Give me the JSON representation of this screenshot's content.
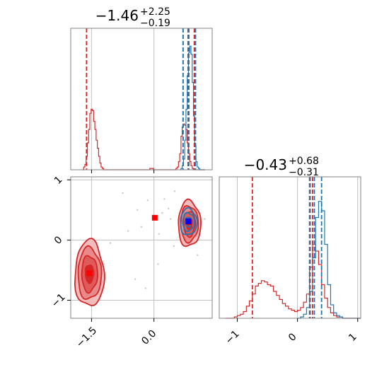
{
  "chart_data": [
    {
      "type": "histogram",
      "panel": "marginal-x",
      "title": {
        "value": "−1.46",
        "plus": "+2.25",
        "minus": "−0.19"
      },
      "xlim": [
        -2.0,
        1.4
      ],
      "series": [
        {
          "name": "",
          "color": "#d62728",
          "x": [
            -1.72,
            -1.69,
            -1.66,
            -1.63,
            -1.6,
            -1.57,
            -1.54,
            -1.51,
            -1.48,
            -1.45,
            -1.42,
            -1.39,
            -1.36,
            -1.33,
            -1.3,
            -1.27,
            -1.24,
            -1.21,
            -1.18,
            -1.15,
            -1.12,
            -1.09,
            -1.06,
            -1.03,
            -1.0,
            -0.97,
            -0.94,
            -0.91,
            -0.88,
            -0.85,
            -0.82,
            -0.79,
            -0.76,
            -0.73,
            -0.7,
            -0.67,
            -0.64,
            -0.61,
            -0.58,
            -0.55,
            -0.52,
            -0.49,
            -0.46,
            -0.43,
            -0.4,
            -0.37,
            -0.34,
            -0.31,
            -0.28,
            -0.25,
            -0.22,
            -0.19,
            -0.16,
            -0.13,
            -0.1,
            -0.07,
            -0.04,
            -0.01,
            0.02,
            0.05,
            0.08,
            0.11,
            0.14,
            0.17,
            0.2,
            0.23,
            0.26,
            0.29,
            0.32,
            0.35,
            0.38,
            0.41,
            0.44,
            0.47,
            0.5,
            0.53,
            0.56,
            0.59,
            0.62,
            0.65,
            0.68,
            0.71,
            0.74,
            0.77,
            0.8,
            0.83,
            0.86,
            0.89,
            0.92,
            0.95,
            0.98,
            1.01,
            1.04,
            1.07,
            1.1,
            1.13,
            1.16,
            1.19
          ],
          "y": [
            0,
            0.02,
            0.04,
            0.1,
            0.2,
            0.3,
            0.42,
            0.45,
            0.44,
            0.36,
            0.3,
            0.22,
            0.16,
            0.1,
            0.05,
            0.02,
            0.01,
            0,
            0,
            0,
            0,
            0,
            0,
            0,
            0,
            0,
            0,
            0,
            0,
            0,
            0,
            0,
            0,
            0,
            0,
            0,
            0,
            0,
            0,
            0,
            0,
            0,
            0,
            0,
            0,
            0,
            0,
            0,
            0,
            0,
            0,
            0,
            0,
            0,
            0.01,
            0.01,
            0.01,
            0,
            0,
            0,
            0,
            0,
            0,
            0,
            0,
            0,
            0,
            0,
            0,
            0,
            0,
            0,
            0,
            0,
            0,
            0.01,
            0.02,
            0.06,
            0.12,
            0.25,
            0.32,
            0.34,
            0.33,
            0.3,
            0.2,
            0.12,
            0.06,
            0.03,
            0.01,
            0,
            0,
            0,
            0,
            0,
            0,
            0,
            0,
            0
          ]
        },
        {
          "name": "",
          "color": "#1f77b4",
          "x": [
            0.62,
            0.65,
            0.68,
            0.71,
            0.74,
            0.77,
            0.8,
            0.83,
            0.86,
            0.89,
            0.92,
            0.95,
            0.98,
            1.01,
            1.04,
            1.07,
            1.1,
            1.13,
            1.16,
            1.19
          ],
          "y": [
            0,
            0.01,
            0.03,
            0.08,
            0.22,
            0.45,
            0.7,
            0.87,
            0.92,
            0.86,
            0.65,
            0.4,
            0.18,
            0.06,
            0.02,
            0.01,
            0,
            0,
            0,
            0
          ]
        }
      ],
      "vlines": [
        {
          "x": -1.62,
          "color": "#d62728"
        },
        {
          "x": 0.7,
          "color": "#d62728"
        },
        {
          "x": 0.82,
          "color": "#d62728"
        },
        {
          "x": 0.97,
          "color": "#d62728"
        },
        {
          "x": 0.7,
          "color": "#1f77b4"
        },
        {
          "x": 0.84,
          "color": "#1f77b4"
        },
        {
          "x": 1.0,
          "color": "#1f77b4"
        }
      ],
      "grid": true
    },
    {
      "type": "contour-scatter",
      "panel": "joint",
      "xlim": [
        -2.0,
        1.4
      ],
      "ylim": [
        -1.3,
        1.05
      ],
      "xticks": [
        -1.5,
        0.0
      ],
      "xticklabels": [
        "−1.5",
        "0.0"
      ],
      "yticks": [
        1,
        0,
        -1
      ],
      "yticklabels": [
        "1",
        "0",
        "−1"
      ],
      "red_contours": [
        {
          "cx": -1.55,
          "cy": -0.56,
          "rx": [
            0.35,
            0.28,
            0.19,
            0.1
          ],
          "ry": [
            0.55,
            0.43,
            0.3,
            0.15
          ]
        },
        {
          "cx": 0.85,
          "cy": 0.27,
          "rx": [
            0.27,
            0.21,
            0.14,
            0.07
          ],
          "ry": [
            0.38,
            0.3,
            0.21,
            0.1
          ]
        }
      ],
      "blue_contours": [
        {
          "cx": 0.83,
          "cy": 0.3,
          "rx": [
            0.2,
            0.14,
            0.08
          ],
          "ry": [
            0.22,
            0.15,
            0.08
          ]
        }
      ],
      "scatter": {
        "color": "#c8c8c8",
        "x": [
          -0.75,
          -0.4,
          -0.15,
          0.2,
          0.35,
          0.5,
          -0.62,
          -0.3,
          0.12,
          0.4,
          -1.6,
          -1.2,
          -1.05,
          -0.45,
          0.1,
          0.48,
          1.22,
          1.05,
          0.25,
          -0.2
        ],
        "y": [
          0.78,
          0.5,
          0.66,
          0.45,
          0.52,
          0.81,
          0.15,
          0.22,
          0.1,
          0.35,
          -0.2,
          -0.4,
          -0.05,
          -0.65,
          -0.4,
          -0.1,
          0.35,
          -0.25,
          0.68,
          -0.8
        ]
      },
      "markers": [
        {
          "x": -1.55,
          "y": -0.55,
          "color": "#ff0000"
        },
        {
          "x": 0.02,
          "y": 0.37,
          "color": "#ff0000"
        },
        {
          "x": 0.85,
          "y": 0.3,
          "color": "#ff0000"
        },
        {
          "x": 0.83,
          "y": 0.31,
          "color": "#0000ff"
        }
      ],
      "grid": true
    },
    {
      "type": "histogram",
      "panel": "marginal-y",
      "title": {
        "value": "−0.43",
        "plus": "+0.68",
        "minus": "−0.31"
      },
      "xlim": [
        -1.3,
        1.05
      ],
      "xticks": [
        -1,
        0,
        1
      ],
      "xticklabels": [
        "−1",
        "0",
        "1"
      ],
      "series": [
        {
          "name": "",
          "color": "#d62728",
          "x": [
            -1.2,
            -1.15,
            -1.1,
            -1.05,
            -1.0,
            -0.95,
            -0.9,
            -0.85,
            -0.8,
            -0.75,
            -0.7,
            -0.65,
            -0.6,
            -0.55,
            -0.5,
            -0.45,
            -0.4,
            -0.35,
            -0.3,
            -0.25,
            -0.2,
            -0.15,
            -0.1,
            -0.05,
            0.0,
            0.05,
            0.1,
            0.15,
            0.2,
            0.25,
            0.3,
            0.35,
            0.4,
            0.45,
            0.5,
            0.55,
            0.6,
            0.65,
            0.7,
            0.75,
            0.8,
            0.85,
            0.9,
            0.95,
            1.0
          ],
          "y": [
            0,
            0,
            0,
            0.01,
            0.02,
            0.03,
            0.05,
            0.09,
            0.13,
            0.18,
            0.24,
            0.26,
            0.28,
            0.27,
            0.25,
            0.24,
            0.2,
            0.17,
            0.14,
            0.11,
            0.09,
            0.07,
            0.06,
            0.05,
            0.06,
            0.08,
            0.12,
            0.18,
            0.38,
            0.55,
            0.5,
            0.4,
            0.25,
            0.15,
            0.08,
            0.04,
            0.02,
            0.01,
            0.01,
            0,
            0,
            0,
            0,
            0,
            0
          ]
        },
        {
          "name": "",
          "color": "#1f77b4",
          "x": [
            0.0,
            0.05,
            0.1,
            0.15,
            0.2,
            0.25,
            0.3,
            0.35,
            0.4,
            0.45,
            0.5,
            0.55,
            0.6,
            0.65,
            0.7,
            0.75,
            0.8,
            0.85,
            0.9,
            0.95,
            1.0
          ],
          "y": [
            0,
            0.01,
            0.03,
            0.08,
            0.2,
            0.45,
            0.75,
            0.87,
            0.8,
            0.55,
            0.25,
            0.1,
            0.04,
            0.02,
            0.01,
            0,
            0,
            0,
            0,
            0,
            0
          ]
        }
      ],
      "vlines": [
        {
          "x": -0.75,
          "color": "#d62728"
        },
        {
          "x": 0.21,
          "color": "#d62728"
        },
        {
          "x": 0.25,
          "color": "#d62728"
        },
        {
          "x": 0.2,
          "color": "#1f77b4"
        },
        {
          "x": 0.28,
          "color": "#1f77b4"
        },
        {
          "x": 0.4,
          "color": "#1f77b4"
        }
      ],
      "grid": true
    }
  ]
}
